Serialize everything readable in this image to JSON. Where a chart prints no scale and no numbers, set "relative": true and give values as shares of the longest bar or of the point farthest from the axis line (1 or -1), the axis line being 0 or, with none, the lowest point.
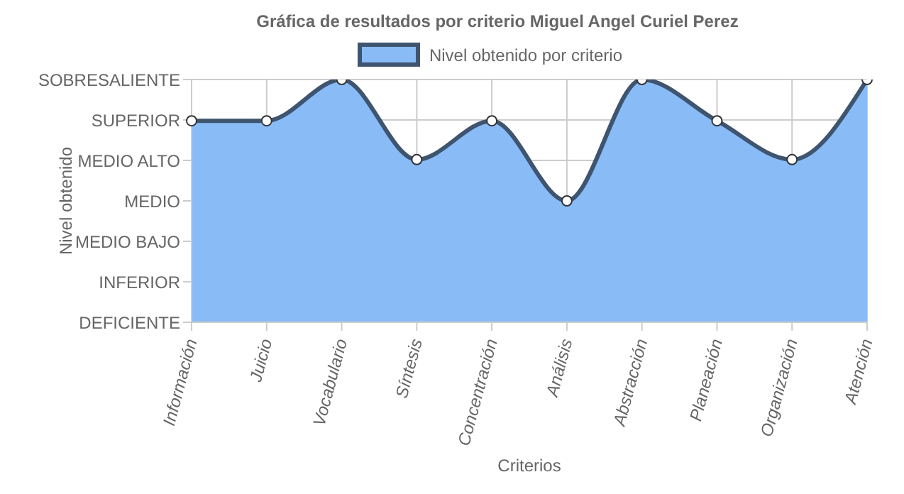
{
  "chart_data": {
    "type": "area",
    "title": "Gráfica de resultados por criterio Miguel Angel Curiel Perez",
    "xlabel": "Criterios",
    "ylabel": "Nivel obtenido",
    "categories": [
      "Información",
      "Juicio",
      "Vocabulario",
      "Síntesis",
      "Concentración",
      "Análisis",
      "Abstracción",
      "Planeación",
      "Organización",
      "Atención"
    ],
    "y_categories": [
      "SOBRESALIENTE",
      "SUPERIOR",
      "MEDIO ALTO",
      "MEDIO",
      "MEDIO BAJO",
      "INFERIOR",
      "DEFICIENTE"
    ],
    "relative": true,
    "series": [
      {
        "name": "Nivel obtenido por criterio",
        "color": "#89bbf7",
        "values": [
          0.83,
          0.83,
          1,
          0.67,
          0.83,
          0.5,
          1,
          0.83,
          0.67,
          1
        ]
      }
    ],
    "grid": true,
    "legend": "top",
    "marker": "circle",
    "line_style": "solid"
  }
}
